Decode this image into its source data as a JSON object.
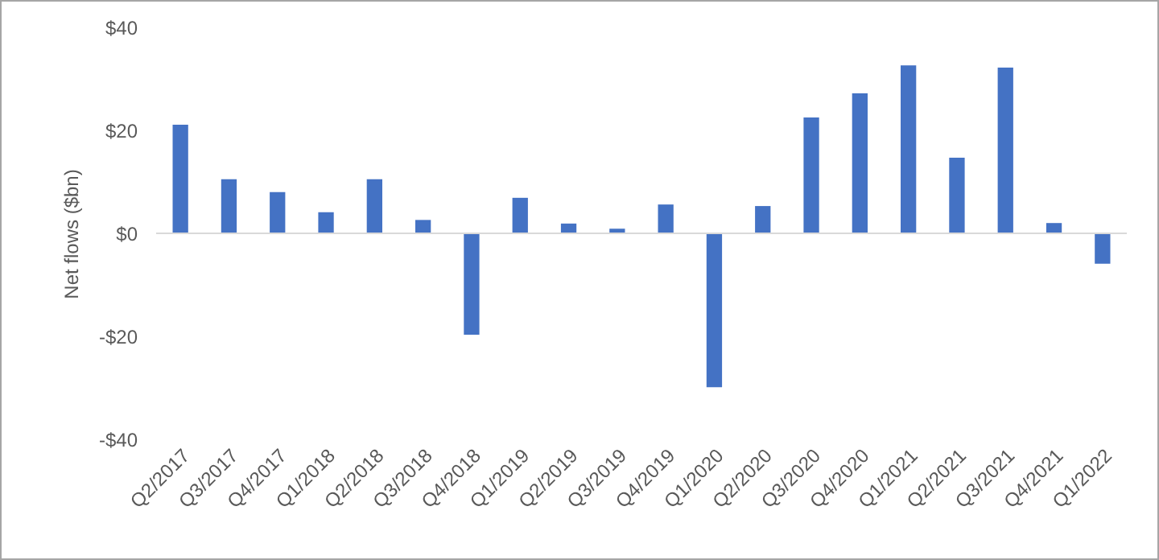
{
  "chart_data": {
    "type": "bar",
    "ylabel": "Net flows ($bn)",
    "categories": [
      "Q2/2017",
      "Q3/2017",
      "Q4/2017",
      "Q1/2018",
      "Q2/2018",
      "Q3/2018",
      "Q4/2018",
      "Q1/2019",
      "Q2/2019",
      "Q3/2019",
      "Q4/2019",
      "Q1/2020",
      "Q2/2020",
      "Q3/2020",
      "Q4/2020",
      "Q1/2021",
      "Q2/2021",
      "Q3/2021",
      "Q4/2021",
      "Q1/2022"
    ],
    "values": [
      21.1,
      10.5,
      8.0,
      4.1,
      10.5,
      2.6,
      -19.7,
      6.9,
      1.9,
      0.9,
      5.6,
      -29.9,
      5.3,
      22.5,
      27.2,
      32.6,
      14.7,
      32.2,
      2.0,
      -5.9
    ],
    "color": "#4472c4",
    "ylim": [
      -40,
      40
    ],
    "yticks": [
      {
        "value": -40,
        "label": "-$40"
      },
      {
        "value": -20,
        "label": "-$20"
      },
      {
        "value": 0,
        "label": "$0"
      },
      {
        "value": 20,
        "label": "$20"
      },
      {
        "value": 40,
        "label": "$40"
      }
    ],
    "ref_lines": [
      {
        "axis": "y",
        "value": 0,
        "color": "#d9d9d9"
      }
    ]
  }
}
